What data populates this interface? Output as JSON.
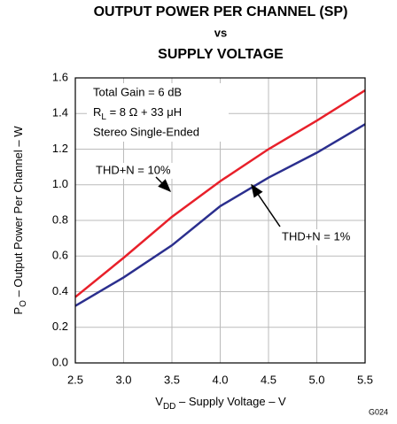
{
  "chart_data": {
    "type": "line",
    "title": [
      "OUTPUT POWER PER CHANNEL (SP)",
      "vs",
      "SUPPLY VOLTAGE"
    ],
    "xlabel": {
      "main": "V",
      "sub": "DD",
      "rest": " – Supply Voltage – V"
    },
    "ylabel": {
      "main": "P",
      "sub": "O",
      "rest": " – Output Power Per Channel – W"
    },
    "x": [
      2.5,
      3.0,
      3.5,
      4.0,
      4.5,
      5.0,
      5.5
    ],
    "series": [
      {
        "name": "THD+N = 10%",
        "color": "#e8202a",
        "values": [
          0.37,
          0.59,
          0.82,
          1.02,
          1.2,
          1.36,
          1.53
        ]
      },
      {
        "name": "THD+N = 1%",
        "color": "#2b2f8e",
        "values": [
          0.32,
          0.48,
          0.66,
          0.88,
          1.04,
          1.18,
          1.34
        ]
      }
    ],
    "xlim": [
      2.5,
      5.5
    ],
    "xticks": [
      2.5,
      {
        "value": 3,
        "label": "3.0"
      },
      3.5,
      {
        "value": 4,
        "label": "4.0"
      },
      4.5,
      {
        "value": 5,
        "label": "5.0"
      },
      5.5
    ],
    "ylim": [
      0,
      1.6
    ],
    "yticks": [
      {
        "value": 0,
        "label": "0.0"
      },
      0.2,
      0.4,
      0.6,
      0.8,
      {
        "value": 1,
        "label": "1.0"
      },
      1.2,
      1.4,
      1.6
    ],
    "grid": true,
    "annotations": {
      "gain": "Total Gain = 6 dB",
      "load": {
        "main": "R",
        "sub": "L",
        "rest": " = 8 Ω + 33 μH"
      },
      "mode": "Stereo Single-Ended",
      "code": "G024"
    }
  }
}
